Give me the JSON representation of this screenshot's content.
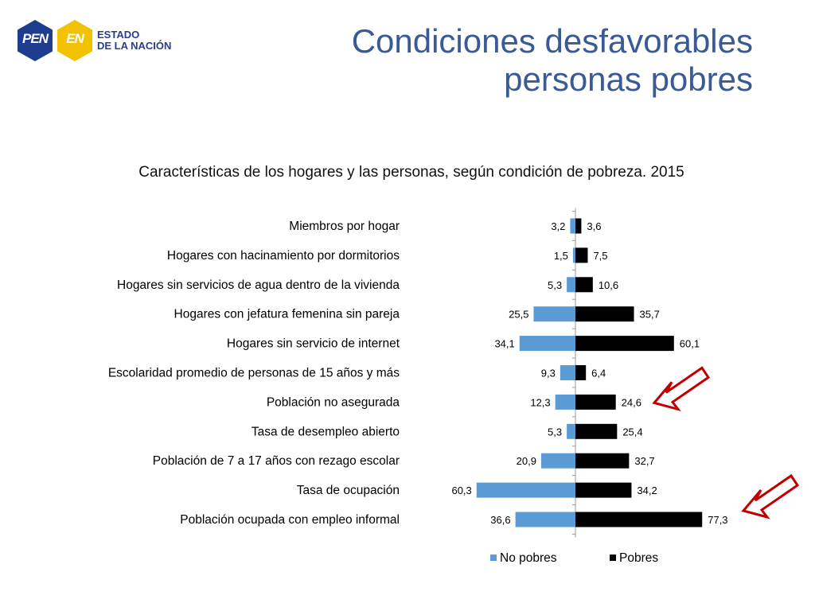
{
  "logo": {
    "pen_text": "PEN",
    "en_text": "EN",
    "name_line1": "ESTADO",
    "name_line2": "DE LA NACIÓN",
    "pen_color": "#1f3d8f",
    "en_color": "#f2c200"
  },
  "slide": {
    "title_line1": "Condiciones desfavorables",
    "title_line2": "personas pobres",
    "title_color": "#3a5a96"
  },
  "chart_data": {
    "type": "bar",
    "orientation": "horizontal-diverging",
    "title": "Características de los hogares y las personas, según condición de pobreza. 2015",
    "categories": [
      "Miembros por hogar",
      "Hogares con hacinamiento por dormitorios",
      "Hogares sin servicios de agua dentro de la vivienda",
      "Hogares con jefatura femenina sin pareja",
      "Hogares sin servicio de internet",
      "Escolaridad promedio de personas de 15 años y más",
      "Población no asegurada",
      "Tasa de desempleo abierto",
      "Población de 7 a 17 años con rezago escolar",
      "Tasa de ocupación",
      "Población ocupada con empleo informal"
    ],
    "series": [
      {
        "name": "No pobres",
        "color": "#5b9bd5",
        "values": [
          3.2,
          1.5,
          5.3,
          25.5,
          34.1,
          9.3,
          12.3,
          5.3,
          20.9,
          60.3,
          36.6
        ],
        "labels": [
          "3,2",
          "1,5",
          "5,3",
          "25,5",
          "34,1",
          "9,3",
          "12,3",
          "5,3",
          "20,9",
          "60,3",
          "36,6"
        ]
      },
      {
        "name": "Pobres",
        "color": "#000000",
        "values": [
          3.6,
          7.5,
          10.6,
          35.7,
          60.1,
          6.4,
          24.6,
          25.4,
          32.7,
          34.2,
          77.3
        ],
        "labels": [
          "3,6",
          "7,5",
          "10,6",
          "35,7",
          "60,1",
          "6,4",
          "24,6",
          "25,4",
          "32,7",
          "34,2",
          "77,3"
        ]
      }
    ],
    "legend_position": "bottom",
    "grid": false,
    "annotations": [
      {
        "type": "arrow",
        "points_to": "Población no asegurada",
        "color": "#c00000"
      },
      {
        "type": "arrow",
        "points_to": "Población ocupada con empleo informal",
        "color": "#c00000"
      }
    ]
  }
}
